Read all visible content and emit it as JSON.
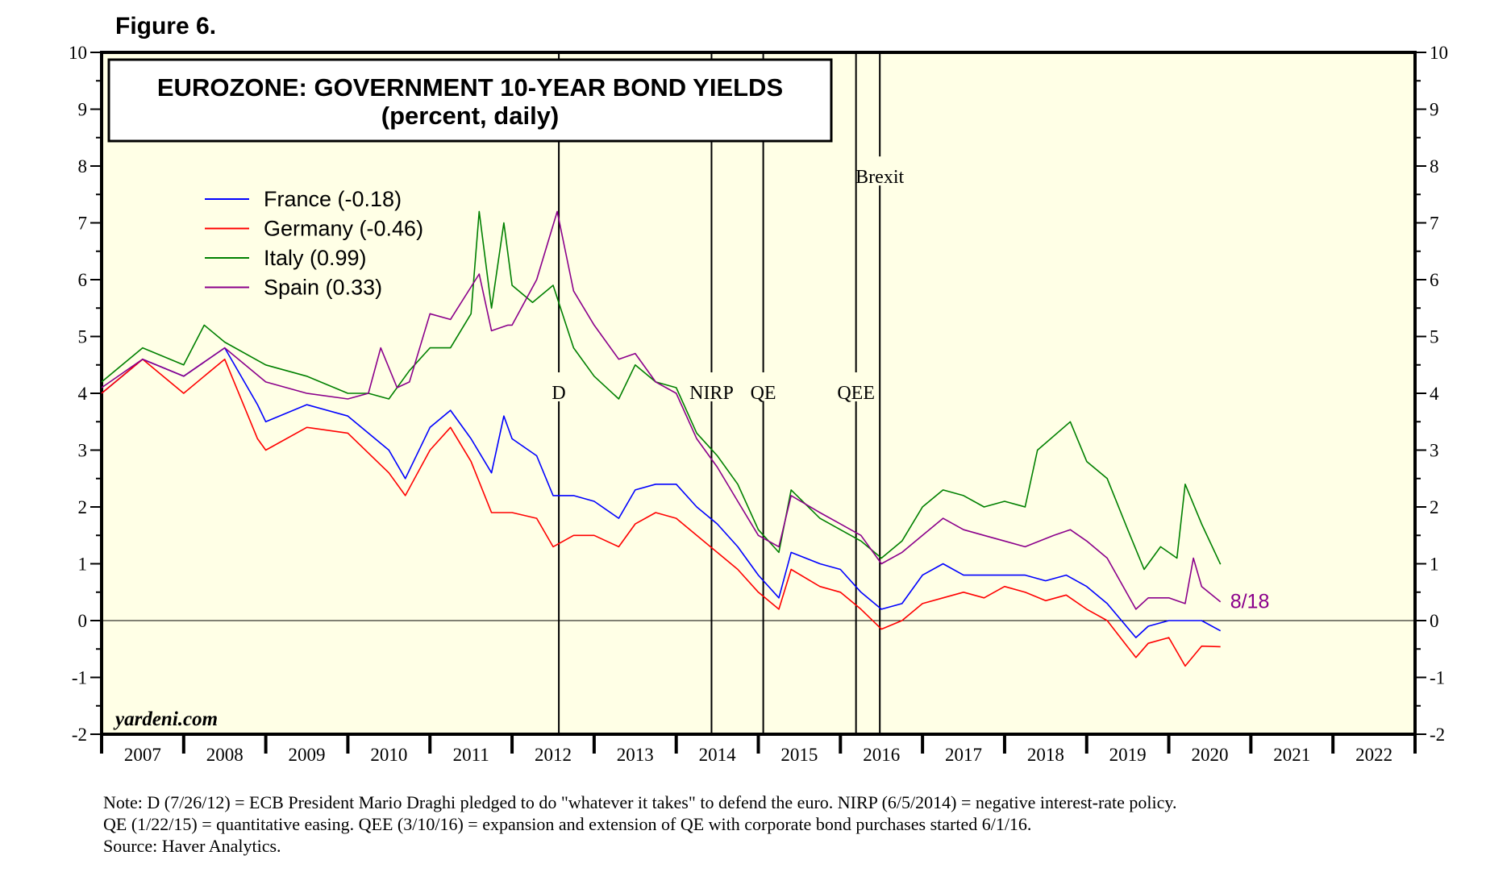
{
  "figure_label": "Figure 6.",
  "watermark": "yardeni.com",
  "notes": [
    "Note: D (7/26/12) = ECB President Mario Draghi pledged to do \"whatever it takes\" to defend the euro. NIRP (6/5/2014) = negative interest-rate policy.",
    "QE (1/22/15) = quantitative easing. QEE (3/10/16) = expansion and extension of QE with corporate bond purchases started 6/1/16.",
    "Source: Haver Analytics."
  ],
  "chart_data": {
    "type": "line",
    "title": "EUROZONE: GOVERNMENT 10-YEAR BOND YIELDS",
    "subtitle": "(percent, daily)",
    "xlabel": "",
    "ylabel": "",
    "xlim": [
      2007,
      2023
    ],
    "ylim": [
      -2,
      10
    ],
    "yticks": [
      "10",
      "9",
      "8",
      "7",
      "6",
      "5",
      "4",
      "3",
      "2",
      "1",
      "0",
      "-1",
      "-2"
    ],
    "xticks": [
      "2007",
      "2008",
      "2009",
      "2010",
      "2011",
      "2012",
      "2013",
      "2014",
      "2015",
      "2016",
      "2017",
      "2018",
      "2019",
      "2020",
      "2021",
      "2022"
    ],
    "grid": false,
    "legend_position": "top-left",
    "end_label": "8/18",
    "end_label_color": "#8B008B",
    "events": [
      {
        "label": "D",
        "x": 2012.57
      },
      {
        "label": "NIRP",
        "x": 2014.43
      },
      {
        "label": "QE",
        "x": 2015.06
      },
      {
        "label": "QEE",
        "x": 2016.19
      },
      {
        "label": "Brexit",
        "x": 2016.48
      }
    ],
    "series": [
      {
        "name": "France (-0.18)",
        "color": "#0000FF",
        "x": [
          2007.0,
          2007.5,
          2008.0,
          2008.5,
          2008.9,
          2009.0,
          2009.5,
          2010.0,
          2010.5,
          2010.7,
          2011.0,
          2011.25,
          2011.5,
          2011.75,
          2011.9,
          2012.0,
          2012.3,
          2012.5,
          2012.75,
          2013.0,
          2013.3,
          2013.5,
          2013.75,
          2014.0,
          2014.25,
          2014.5,
          2014.75,
          2015.0,
          2015.25,
          2015.4,
          2015.75,
          2016.0,
          2016.25,
          2016.5,
          2016.75,
          2017.0,
          2017.25,
          2017.5,
          2017.75,
          2018.0,
          2018.25,
          2018.5,
          2018.75,
          2019.0,
          2019.25,
          2019.6,
          2019.75,
          2020.0,
          2020.2,
          2020.4,
          2020.63
        ],
        "y": [
          4.0,
          4.6,
          4.3,
          4.8,
          3.8,
          3.5,
          3.8,
          3.6,
          3.0,
          2.5,
          3.4,
          3.7,
          3.2,
          2.6,
          3.6,
          3.2,
          2.9,
          2.2,
          2.2,
          2.1,
          1.8,
          2.3,
          2.4,
          2.4,
          2.0,
          1.7,
          1.3,
          0.8,
          0.4,
          1.2,
          1.0,
          0.9,
          0.5,
          0.2,
          0.3,
          0.8,
          1.0,
          0.8,
          0.8,
          0.8,
          0.8,
          0.7,
          0.8,
          0.6,
          0.3,
          -0.3,
          -0.1,
          0.0,
          0.0,
          0.0,
          -0.18
        ]
      },
      {
        "name": "Germany (-0.46)",
        "color": "#FF0000",
        "x": [
          2007.0,
          2007.5,
          2008.0,
          2008.5,
          2008.9,
          2009.0,
          2009.5,
          2010.0,
          2010.5,
          2010.7,
          2011.0,
          2011.25,
          2011.5,
          2011.75,
          2012.0,
          2012.3,
          2012.5,
          2012.75,
          2013.0,
          2013.3,
          2013.5,
          2013.75,
          2014.0,
          2014.25,
          2014.5,
          2014.75,
          2015.0,
          2015.25,
          2015.4,
          2015.75,
          2016.0,
          2016.25,
          2016.5,
          2016.75,
          2017.0,
          2017.25,
          2017.5,
          2017.75,
          2018.0,
          2018.25,
          2018.5,
          2018.75,
          2019.0,
          2019.25,
          2019.6,
          2019.75,
          2020.0,
          2020.2,
          2020.4,
          2020.63
        ],
        "y": [
          4.0,
          4.6,
          4.0,
          4.6,
          3.2,
          3.0,
          3.4,
          3.3,
          2.6,
          2.2,
          3.0,
          3.4,
          2.8,
          1.9,
          1.9,
          1.8,
          1.3,
          1.5,
          1.5,
          1.3,
          1.7,
          1.9,
          1.8,
          1.5,
          1.2,
          0.9,
          0.5,
          0.2,
          0.9,
          0.6,
          0.5,
          0.2,
          -0.15,
          0.0,
          0.3,
          0.4,
          0.5,
          0.4,
          0.6,
          0.5,
          0.35,
          0.45,
          0.2,
          0.0,
          -0.65,
          -0.4,
          -0.3,
          -0.8,
          -0.45,
          -0.46
        ]
      },
      {
        "name": "Italy (0.99)",
        "color": "#008000",
        "x": [
          2007.0,
          2007.5,
          2008.0,
          2008.25,
          2008.5,
          2009.0,
          2009.5,
          2010.0,
          2010.25,
          2010.5,
          2010.75,
          2011.0,
          2011.25,
          2011.5,
          2011.6,
          2011.75,
          2011.9,
          2012.0,
          2012.25,
          2012.5,
          2012.75,
          2013.0,
          2013.3,
          2013.5,
          2013.75,
          2014.0,
          2014.25,
          2014.5,
          2014.75,
          2015.0,
          2015.25,
          2015.4,
          2015.75,
          2016.0,
          2016.25,
          2016.5,
          2016.75,
          2017.0,
          2017.25,
          2017.5,
          2017.75,
          2018.0,
          2018.25,
          2018.4,
          2018.8,
          2019.0,
          2019.25,
          2019.5,
          2019.7,
          2019.9,
          2020.1,
          2020.2,
          2020.4,
          2020.63
        ],
        "y": [
          4.2,
          4.8,
          4.5,
          5.2,
          4.9,
          4.5,
          4.3,
          4.0,
          4.0,
          3.9,
          4.4,
          4.8,
          4.8,
          5.4,
          7.2,
          5.5,
          7.0,
          5.9,
          5.6,
          5.9,
          4.8,
          4.3,
          3.9,
          4.5,
          4.2,
          4.1,
          3.3,
          2.9,
          2.4,
          1.6,
          1.2,
          2.3,
          1.8,
          1.6,
          1.4,
          1.1,
          1.4,
          2.0,
          2.3,
          2.2,
          2.0,
          2.1,
          2.0,
          3.0,
          3.5,
          2.8,
          2.5,
          1.6,
          0.9,
          1.3,
          1.1,
          2.4,
          1.7,
          0.99
        ]
      },
      {
        "name": "Spain (0.33)",
        "color": "#8B008B",
        "x": [
          2007.0,
          2007.5,
          2008.0,
          2008.5,
          2009.0,
          2009.5,
          2010.0,
          2010.25,
          2010.4,
          2010.6,
          2010.75,
          2011.0,
          2011.25,
          2011.6,
          2011.75,
          2011.95,
          2012.0,
          2012.3,
          2012.55,
          2012.75,
          2013.0,
          2013.3,
          2013.5,
          2013.75,
          2014.0,
          2014.25,
          2014.5,
          2014.75,
          2015.0,
          2015.25,
          2015.4,
          2015.75,
          2016.0,
          2016.25,
          2016.5,
          2016.75,
          2017.0,
          2017.25,
          2017.5,
          2017.75,
          2018.0,
          2018.25,
          2018.6,
          2018.8,
          2019.0,
          2019.25,
          2019.6,
          2019.75,
          2020.0,
          2020.2,
          2020.3,
          2020.4,
          2020.63
        ],
        "y": [
          4.1,
          4.6,
          4.3,
          4.8,
          4.2,
          4.0,
          3.9,
          4.0,
          4.8,
          4.1,
          4.2,
          5.4,
          5.3,
          6.1,
          5.1,
          5.2,
          5.2,
          6.0,
          7.2,
          5.8,
          5.2,
          4.6,
          4.7,
          4.2,
          4.0,
          3.2,
          2.7,
          2.1,
          1.5,
          1.3,
          2.2,
          1.9,
          1.7,
          1.5,
          1.0,
          1.2,
          1.5,
          1.8,
          1.6,
          1.5,
          1.4,
          1.3,
          1.5,
          1.6,
          1.4,
          1.1,
          0.2,
          0.4,
          0.4,
          0.3,
          1.1,
          0.6,
          0.33
        ]
      }
    ]
  }
}
